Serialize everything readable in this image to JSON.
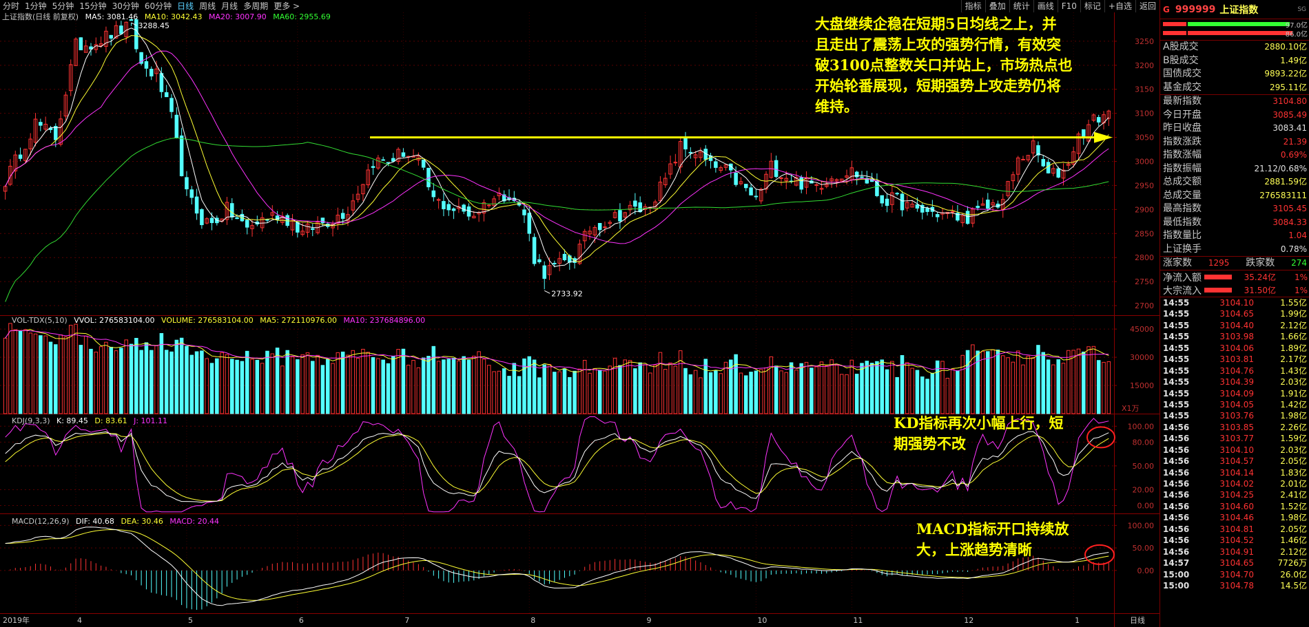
{
  "toolbar": {
    "periods": [
      "分时",
      "1分钟",
      "5分钟",
      "15分钟",
      "30分钟",
      "60分钟",
      "日线",
      "周线",
      "月线",
      "多周期",
      "更多 >"
    ],
    "active_period": "日线",
    "tools": [
      "指标",
      "叠加",
      "统计",
      "画线",
      "F10",
      "标记",
      "+自选",
      "返回"
    ]
  },
  "main_legend": {
    "title": "上证指数(日线 前复权)",
    "ma5": "MA5: 3081.46",
    "ma10": "MA10: 3042.43",
    "ma20": "MA20: 3007.90",
    "ma60": "MA60: 2955.69"
  },
  "vol_legend": {
    "title": "VOL-TDX(5,10)",
    "vvol": "VVOL: 276583104.00",
    "volume": "VOLUME: 276583104.00",
    "ma5": "MA5: 272110976.00",
    "ma10": "MA10: 237684896.00",
    "unit": "X1万"
  },
  "kdj_legend": {
    "title": "KDJ(9,3,3)",
    "k": "K: 89.45",
    "d": "D: 83.61",
    "j": "J: 101.11"
  },
  "macd_legend": {
    "title": "MACD(12,26,9)",
    "dif": "DIF: 40.68",
    "dea": "DEA: 30.46",
    "macd": "MACD: 20.44"
  },
  "annotations": {
    "main": "大盘继续企稳在短期5日均线之上，并且走出了震荡上攻的强势行情，有效突破3100点整数关口并站上，市场热点也开始轮番展现，短期强势上攻走势仍将维持。",
    "main_lines": [
      "大盘继续企稳在短期5日均线之上，并",
      "且走出了震荡上攻的强势行情，有效突",
      "破3100点整数关口并站上，市场热点也",
      "开始轮番展现，短期强势上攻走势仍将",
      "维持。"
    ],
    "kdj_lines": [
      "KD指标再次小幅上行，短",
      "期强势不改"
    ],
    "macd_lines": [
      "MACD指标开口持续放",
      "大，上涨趋势清晰"
    ]
  },
  "chart_data": [
    {
      "type": "candlestick",
      "title": "上证指数(日线 前复权)",
      "y_ticks": [
        2700,
        2750,
        2800,
        2850,
        2900,
        2950,
        3000,
        3050,
        3100,
        3150,
        3200,
        3250
      ],
      "ylim": [
        2680,
        3310
      ],
      "high_label": "3288.45",
      "low_label": "2733.92",
      "resistance_level": 3050,
      "x_month_labels": [
        "2019年",
        "4",
        "5",
        "6",
        "7",
        "8",
        "9",
        "10",
        "11",
        "12",
        "1"
      ],
      "x_month_index": [
        0,
        14,
        36,
        58,
        79,
        104,
        127,
        149,
        168,
        190,
        212
      ],
      "n_days": 220,
      "anchors": [
        [
          0,
          2960
        ],
        [
          6,
          3080
        ],
        [
          10,
          3050
        ],
        [
          14,
          3240
        ],
        [
          18,
          3250
        ],
        [
          22,
          3270
        ],
        [
          25,
          3280
        ],
        [
          27,
          3200
        ],
        [
          30,
          3180
        ],
        [
          33,
          3090
        ],
        [
          36,
          2930
        ],
        [
          39,
          2880
        ],
        [
          41,
          2870
        ],
        [
          44,
          2900
        ],
        [
          48,
          2860
        ],
        [
          51,
          2880
        ],
        [
          54,
          2890
        ],
        [
          57,
          2875
        ],
        [
          59,
          2850
        ],
        [
          62,
          2870
        ],
        [
          65,
          2880
        ],
        [
          68,
          2900
        ],
        [
          71,
          2960
        ],
        [
          73,
          3000
        ],
        [
          76,
          3000
        ],
        [
          79,
          3020
        ],
        [
          82,
          3000
        ],
        [
          85,
          2920
        ],
        [
          89,
          2900
        ],
        [
          93,
          2890
        ],
        [
          96,
          2920
        ],
        [
          100,
          2935
        ],
        [
          103,
          2890
        ],
        [
          105,
          2800
        ],
        [
          107,
          2770
        ],
        [
          111,
          2790
        ],
        [
          113,
          2800
        ],
        [
          116,
          2860
        ],
        [
          120,
          2880
        ],
        [
          124,
          2900
        ],
        [
          127,
          2900
        ],
        [
          131,
          2960
        ],
        [
          134,
          3030
        ],
        [
          137,
          3020
        ],
        [
          140,
          2990
        ],
        [
          143,
          2980
        ],
        [
          146,
          2950
        ],
        [
          149,
          2920
        ],
        [
          152,
          2990
        ],
        [
          155,
          2970
        ],
        [
          158,
          2955
        ],
        [
          161,
          2950
        ],
        [
          164,
          2970
        ],
        [
          168,
          2980
        ],
        [
          171,
          2960
        ],
        [
          174,
          2920
        ],
        [
          177,
          2920
        ],
        [
          180,
          2900
        ],
        [
          183,
          2895
        ],
        [
          187,
          2890
        ],
        [
          190,
          2880
        ],
        [
          194,
          2900
        ],
        [
          198,
          2920
        ],
        [
          201,
          3000
        ],
        [
          204,
          3030
        ],
        [
          207,
          2970
        ],
        [
          210,
          2980
        ],
        [
          213,
          3050
        ],
        [
          216,
          3085
        ],
        [
          219,
          3104
        ]
      ],
      "legend": {
        "ma5": "MA5: 3081.46",
        "ma10": "MA10: 3042.43",
        "ma20": "MA20: 3007.90",
        "ma60": "MA60: 2955.69"
      },
      "last_close": 3104.8
    },
    {
      "type": "bar",
      "title": "VOL-TDX(5,10)",
      "y_ticks": [
        15000,
        30000,
        45000
      ],
      "ylim": [
        0,
        52000
      ],
      "unit": "X1万",
      "last_volume": 27658
    },
    {
      "type": "line",
      "title": "KDJ(9,3,3)",
      "y_ticks": [
        0.0,
        20.0,
        50.0,
        80.0,
        100.0
      ],
      "ylim": [
        -10,
        115
      ],
      "series": [
        {
          "name": "K",
          "last": 89.45
        },
        {
          "name": "D",
          "last": 83.61
        },
        {
          "name": "J",
          "last": 101.11
        }
      ]
    },
    {
      "type": "line",
      "title": "MACD(12,26,9)",
      "y_ticks": [
        0.0,
        50.0,
        100.0
      ],
      "ylim": [
        -95,
        125
      ],
      "series": [
        {
          "name": "DIF",
          "last": 40.68
        },
        {
          "name": "DEA",
          "last": 30.46
        },
        {
          "name": "MACD",
          "last": 20.44
        }
      ]
    }
  ],
  "panel": {
    "header": {
      "g": "G",
      "code": "999999",
      "name": "上证指数",
      "sg": "SG"
    },
    "ratio_rows": [
      {
        "value": "97.0亿"
      },
      {
        "value": "86.0亿"
      }
    ],
    "turnover": [
      {
        "label": "A股成交",
        "value": "2880.10亿"
      },
      {
        "label": "B股成交",
        "value": "1.49亿"
      },
      {
        "label": "国债成交",
        "value": "9893.22亿"
      },
      {
        "label": "基金成交",
        "value": "295.11亿"
      }
    ],
    "quote": [
      {
        "label": "最新指数",
        "value": "3104.80",
        "color": "red"
      },
      {
        "label": "今日开盘",
        "value": "3085.49",
        "color": "red"
      },
      {
        "label": "昨日收盘",
        "value": "3083.41",
        "color": "white"
      },
      {
        "label": "指数涨跌",
        "value": "21.39",
        "color": "red"
      },
      {
        "label": "指数涨幅",
        "value": "0.69%",
        "color": "red"
      },
      {
        "label": "指数振幅",
        "value": "21.12/0.68%",
        "color": "white"
      },
      {
        "label": "总成交额",
        "value": "2881.59亿",
        "color": "yellow"
      },
      {
        "label": "总成交量",
        "value": "276583111",
        "color": "yellow"
      },
      {
        "label": "最高指数",
        "value": "3105.45",
        "color": "red"
      },
      {
        "label": "最低指数",
        "value": "3084.33",
        "color": "red"
      },
      {
        "label": "指数量比",
        "value": "1.04",
        "color": "red"
      },
      {
        "label": "上证换手",
        "value": "0.78%",
        "color": "white"
      }
    ],
    "breadth": {
      "up_label": "涨家数",
      "up": "1295",
      "down_label": "跌家数",
      "down": "274"
    },
    "flows": [
      {
        "label": "净流入额",
        "value": "35.24亿",
        "pct": "1%"
      },
      {
        "label": "大宗流入",
        "value": "31.50亿",
        "pct": "1%"
      }
    ],
    "ticks": [
      {
        "t": "14:55",
        "p": "3104.10",
        "v": "1.55亿"
      },
      {
        "t": "14:55",
        "p": "3104.65",
        "v": "1.99亿"
      },
      {
        "t": "14:55",
        "p": "3104.40",
        "v": "2.12亿"
      },
      {
        "t": "14:55",
        "p": "3103.98",
        "v": "1.66亿"
      },
      {
        "t": "14:55",
        "p": "3104.06",
        "v": "1.89亿"
      },
      {
        "t": "14:55",
        "p": "3103.81",
        "v": "2.17亿"
      },
      {
        "t": "14:55",
        "p": "3104.76",
        "v": "1.43亿"
      },
      {
        "t": "14:55",
        "p": "3104.39",
        "v": "2.03亿"
      },
      {
        "t": "14:55",
        "p": "3104.09",
        "v": "1.91亿"
      },
      {
        "t": "14:55",
        "p": "3104.05",
        "v": "1.42亿"
      },
      {
        "t": "14:55",
        "p": "3103.76",
        "v": "1.98亿"
      },
      {
        "t": "14:56",
        "p": "3103.85",
        "v": "2.26亿"
      },
      {
        "t": "14:56",
        "p": "3103.77",
        "v": "1.59亿"
      },
      {
        "t": "14:56",
        "p": "3104.10",
        "v": "2.03亿"
      },
      {
        "t": "14:56",
        "p": "3104.57",
        "v": "2.05亿"
      },
      {
        "t": "14:56",
        "p": "3104.14",
        "v": "1.83亿"
      },
      {
        "t": "14:56",
        "p": "3104.02",
        "v": "2.01亿"
      },
      {
        "t": "14:56",
        "p": "3104.25",
        "v": "2.41亿"
      },
      {
        "t": "14:56",
        "p": "3104.60",
        "v": "1.52亿"
      },
      {
        "t": "14:56",
        "p": "3104.46",
        "v": "1.98亿"
      },
      {
        "t": "14:56",
        "p": "3104.81",
        "v": "2.05亿"
      },
      {
        "t": "14:56",
        "p": "3104.52",
        "v": "1.46亿"
      },
      {
        "t": "14:56",
        "p": "3104.91",
        "v": "2.12亿"
      },
      {
        "t": "14:57",
        "p": "3104.65",
        "v": "7726万"
      },
      {
        "t": "15:00",
        "p": "3104.70",
        "v": "26.0亿"
      },
      {
        "t": "15:00",
        "p": "3104.78",
        "v": "14.5亿"
      }
    ]
  }
}
